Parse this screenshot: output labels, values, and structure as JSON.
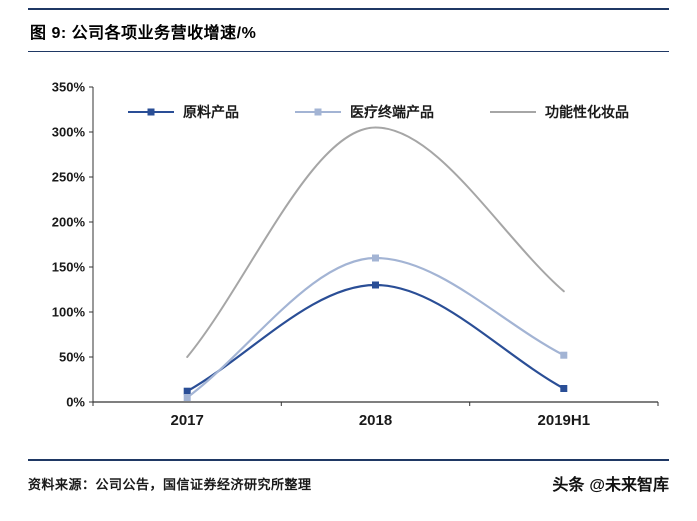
{
  "header": {
    "title": "图 9:  公司各项业务营收增速/%"
  },
  "footer": {
    "source": "资料来源：公司公告，国信证券经济研究所整理",
    "watermark_brand": "头条",
    "watermark_handle": "@未来智库"
  },
  "colors": {
    "accent_navy": "#1f3864",
    "axis": "#333333",
    "series_dark_blue": "#2a4e96",
    "series_light_blue": "#a3b4d4",
    "series_gray": "#a6a6a6"
  },
  "chart_data": {
    "type": "line",
    "title": "公司各项业务营收增速/%",
    "categories": [
      "2017",
      "2018",
      "2019H1"
    ],
    "series": [
      {
        "name": "原料产品",
        "values": [
          12,
          130,
          15
        ],
        "color": "#2a4e96",
        "marker": "square",
        "width": 2.2,
        "smooth": true
      },
      {
        "name": "医疗终端产品",
        "values": [
          5,
          160,
          52
        ],
        "color": "#a3b4d4",
        "marker": "square",
        "width": 2.2,
        "smooth": true
      },
      {
        "name": "功能性化妆品",
        "values": [
          50,
          305,
          123
        ],
        "color": "#a6a6a6",
        "marker": "none",
        "width": 2.0,
        "smooth": true
      }
    ],
    "xlabel": "",
    "ylabel": "",
    "ylim": [
      0,
      350
    ],
    "ytick_step": 50,
    "ytick_suffix": "%",
    "grid": false,
    "legend_position": "top-inside"
  }
}
